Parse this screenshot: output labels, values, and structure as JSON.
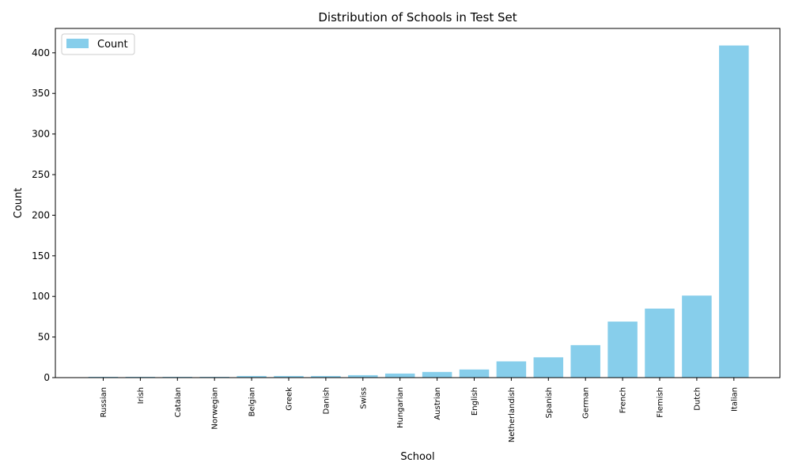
{
  "chart_data": {
    "type": "bar",
    "title": "Distribution of Schools in Test Set",
    "xlabel": "School",
    "ylabel": "Count",
    "ylim": [
      0,
      430
    ],
    "yticks": [
      0,
      50,
      100,
      150,
      200,
      250,
      300,
      350,
      400
    ],
    "grid": false,
    "legend_position": "top-left",
    "bar_color": "#87ceeb",
    "series": [
      {
        "name": "Count",
        "values": [
          1,
          1,
          1,
          1,
          2,
          2,
          2,
          3,
          5,
          7,
          10,
          20,
          25,
          40,
          69,
          85,
          101,
          409
        ]
      }
    ],
    "categories": [
      "Russian",
      "Irish",
      "Catalan",
      "Norwegian",
      "Belgian",
      "Greek",
      "Danish",
      "Swiss",
      "Hungarian",
      "Austrian",
      "English",
      "Netherlandish",
      "Spanish",
      "German",
      "French",
      "Flemish",
      "Dutch",
      "Italian"
    ]
  }
}
